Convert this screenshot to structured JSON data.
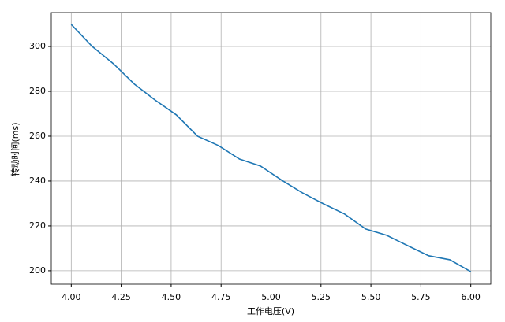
{
  "chart_data": {
    "type": "line",
    "xlabel": "工作电压(V)",
    "ylabel": "转动时间(ms)",
    "x": [
      4,
      4.105,
      4.211,
      4.316,
      4.421,
      4.526,
      4.632,
      4.737,
      4.842,
      4.947,
      5.053,
      5.158,
      5.263,
      5.368,
      5.474,
      5.579,
      5.684,
      5.789,
      5.895,
      6
    ],
    "series": [
      {
        "color": "#1f77b4",
        "values": [
          309.8,
          300,
          292.3,
          283.2,
          276,
          269.5,
          260,
          255.8,
          249.8,
          246.7,
          240.4,
          234.7,
          229.8,
          225.3,
          218.6,
          215.8,
          211.2,
          206.7,
          204.9,
          199.6
        ]
      }
    ],
    "xlim": [
      3.9,
      6.1
    ],
    "xticks": [
      {
        "value": 4,
        "label": "4.00"
      },
      4.25,
      {
        "value": 4.5,
        "label": "4.50"
      },
      4.75,
      {
        "value": 5,
        "label": "5.00"
      },
      5.25,
      {
        "value": 5.5,
        "label": "5.50"
      },
      5.75,
      {
        "value": 6,
        "label": "6.00"
      }
    ],
    "ylim": [
      194,
      315.1
    ],
    "yticks": [
      200,
      220,
      240,
      260,
      280,
      300
    ],
    "grid": true
  }
}
